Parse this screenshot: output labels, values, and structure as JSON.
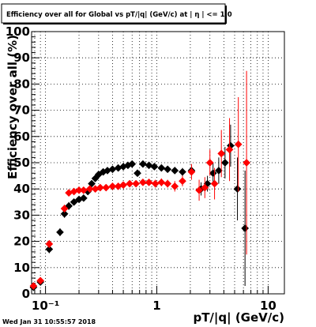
{
  "chart_data": {
    "type": "scatter",
    "title": "Efficiency over all for Global vs pT/|q| (GeV/c) at | η | <= 1.0",
    "xlabel": "pT/|q| (GeV/c)",
    "ylabel": "Efficiency over all (%)",
    "x_scale": "log",
    "xlim": [
      0.075,
      14
    ],
    "ylim": [
      0,
      100
    ],
    "grid": true,
    "x_tick_labels": [
      {
        "value": 0.1,
        "label": "10⁻¹"
      },
      {
        "value": 1,
        "label": "1"
      },
      {
        "value": 10,
        "label": "10"
      }
    ],
    "y_ticks": [
      0,
      10,
      20,
      30,
      40,
      50,
      60,
      70,
      80,
      90,
      100
    ],
    "series": [
      {
        "color": "#000000",
        "marker": "diamond",
        "points": [
          {
            "x": 0.078,
            "y": 2.5,
            "yerr": 1.0
          },
          {
            "x": 0.09,
            "y": 4.5,
            "yerr": 1.0
          },
          {
            "x": 0.108,
            "y": 17,
            "yerr": 1.5
          },
          {
            "x": 0.135,
            "y": 23.5,
            "yerr": 1.5
          },
          {
            "x": 0.148,
            "y": 30.5,
            "yerr": 1.5
          },
          {
            "x": 0.162,
            "y": 33.5,
            "yerr": 1.5
          },
          {
            "x": 0.18,
            "y": 35,
            "yerr": 1.0
          },
          {
            "x": 0.2,
            "y": 36,
            "yerr": 1.0
          },
          {
            "x": 0.22,
            "y": 36.5,
            "yerr": 1.0
          },
          {
            "x": 0.24,
            "y": 39,
            "yerr": 1.0
          },
          {
            "x": 0.26,
            "y": 42,
            "yerr": 1.0
          },
          {
            "x": 0.28,
            "y": 44,
            "yerr": 1.0
          },
          {
            "x": 0.3,
            "y": 45.5,
            "yerr": 1.0
          },
          {
            "x": 0.33,
            "y": 46.5,
            "yerr": 1.0
          },
          {
            "x": 0.36,
            "y": 47,
            "yerr": 1.0
          },
          {
            "x": 0.4,
            "y": 47.5,
            "yerr": 1.0
          },
          {
            "x": 0.45,
            "y": 48,
            "yerr": 1.0
          },
          {
            "x": 0.5,
            "y": 48.5,
            "yerr": 1.0
          },
          {
            "x": 0.55,
            "y": 49,
            "yerr": 1.0
          },
          {
            "x": 0.6,
            "y": 49.5,
            "yerr": 1.0
          },
          {
            "x": 0.67,
            "y": 46,
            "yerr": 1.0
          },
          {
            "x": 0.75,
            "y": 49.5,
            "yerr": 1.0
          },
          {
            "x": 0.85,
            "y": 49,
            "yerr": 1.0
          },
          {
            "x": 0.95,
            "y": 48.5,
            "yerr": 1.0
          },
          {
            "x": 1.1,
            "y": 48,
            "yerr": 1.0
          },
          {
            "x": 1.25,
            "y": 47.5,
            "yerr": 1.0
          },
          {
            "x": 1.45,
            "y": 47,
            "yerr": 1.0
          },
          {
            "x": 1.7,
            "y": 46.5,
            "yerr": 1.5
          },
          {
            "x": 2.05,
            "y": 47,
            "yerr": 2.0
          },
          {
            "x": 2.5,
            "y": 40,
            "yerr": 2.5
          },
          {
            "x": 2.85,
            "y": 42,
            "yerr": 3.0
          },
          {
            "x": 3.2,
            "y": 46,
            "yerr": 4.0
          },
          {
            "x": 3.6,
            "y": 47,
            "yerr": 5.0
          },
          {
            "x": 4.1,
            "y": 50,
            "yerr": 6.0
          },
          {
            "x": 4.6,
            "y": 56.5,
            "yerr": 8.0
          },
          {
            "x": 5.3,
            "y": 40,
            "yerr": 12.0
          },
          {
            "x": 6.2,
            "y": 25,
            "yerr": 22.0
          }
        ]
      },
      {
        "color": "#ff0000",
        "marker": "diamond",
        "points": [
          {
            "x": 0.078,
            "y": 3,
            "yerr": 1.0
          },
          {
            "x": 0.09,
            "y": 5,
            "yerr": 1.0
          },
          {
            "x": 0.108,
            "y": 19,
            "yerr": 1.5
          },
          {
            "x": 0.148,
            "y": 32.5,
            "yerr": 1.5
          },
          {
            "x": 0.162,
            "y": 38.5,
            "yerr": 1.0
          },
          {
            "x": 0.18,
            "y": 39,
            "yerr": 1.0
          },
          {
            "x": 0.2,
            "y": 39.5,
            "yerr": 1.0
          },
          {
            "x": 0.22,
            "y": 39.5,
            "yerr": 1.0
          },
          {
            "x": 0.25,
            "y": 40,
            "yerr": 1.0
          },
          {
            "x": 0.28,
            "y": 40,
            "yerr": 1.0
          },
          {
            "x": 0.31,
            "y": 40.5,
            "yerr": 1.0
          },
          {
            "x": 0.35,
            "y": 40.5,
            "yerr": 1.0
          },
          {
            "x": 0.4,
            "y": 41,
            "yerr": 1.0
          },
          {
            "x": 0.45,
            "y": 41,
            "yerr": 1.0
          },
          {
            "x": 0.5,
            "y": 41.5,
            "yerr": 1.0
          },
          {
            "x": 0.57,
            "y": 42,
            "yerr": 1.0
          },
          {
            "x": 0.65,
            "y": 42,
            "yerr": 1.0
          },
          {
            "x": 0.75,
            "y": 42.5,
            "yerr": 1.0
          },
          {
            "x": 0.85,
            "y": 42.5,
            "yerr": 1.0
          },
          {
            "x": 0.97,
            "y": 42,
            "yerr": 1.5
          },
          {
            "x": 1.1,
            "y": 42.5,
            "yerr": 1.5
          },
          {
            "x": 1.25,
            "y": 42,
            "yerr": 1.5
          },
          {
            "x": 1.45,
            "y": 41,
            "yerr": 2.0
          },
          {
            "x": 1.7,
            "y": 43,
            "yerr": 2.0
          },
          {
            "x": 2.05,
            "y": 46.5,
            "yerr": 3.0
          },
          {
            "x": 2.4,
            "y": 39.5,
            "yerr": 4.0
          },
          {
            "x": 2.7,
            "y": 40.5,
            "yerr": 4.0
          },
          {
            "x": 3.0,
            "y": 50,
            "yerr": 5.0
          },
          {
            "x": 3.3,
            "y": 42,
            "yerr": 6.0
          },
          {
            "x": 3.8,
            "y": 53.5,
            "yerr": 9.0
          },
          {
            "x": 4.5,
            "y": 55,
            "yerr": 12.0
          },
          {
            "x": 5.4,
            "y": 57,
            "yerr": 18.0
          },
          {
            "x": 6.4,
            "y": 50,
            "yerr": 35.0
          }
        ]
      }
    ],
    "date_stamp": "Wed Jan 31 10:55:57 2018"
  }
}
